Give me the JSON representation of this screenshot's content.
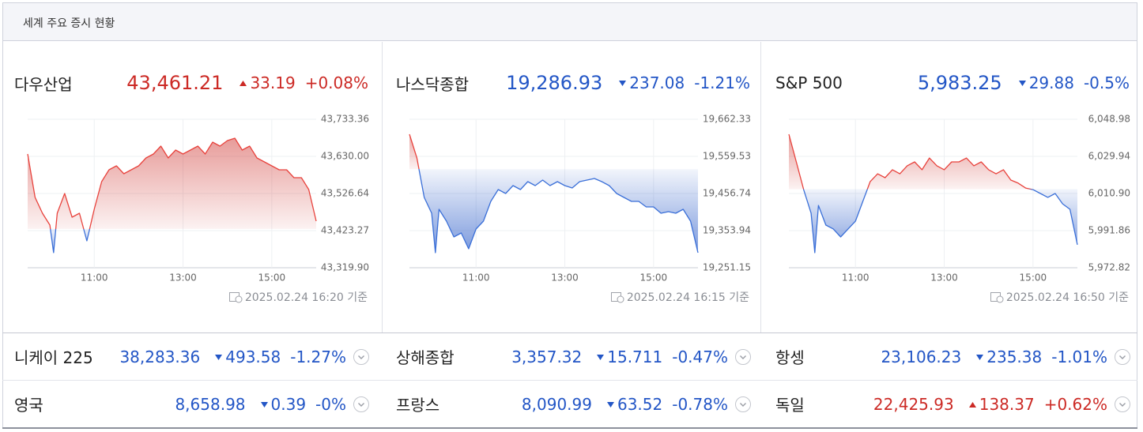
{
  "header": {
    "title": "세계 주요 증시 현황"
  },
  "panels": [
    {
      "name": "다우산업",
      "price": "43,461.21",
      "change": "33.19",
      "percent": "+0.08%",
      "updated": "2025.02.24 16:20 기준",
      "chart": {
        "type": "line",
        "grid": true,
        "x": [
          "09:30",
          "09:40",
          "09:50",
          "10:00",
          "10:05",
          "10:10",
          "10:20",
          "10:30",
          "10:40",
          "10:50",
          "11:00",
          "11:10",
          "11:20",
          "11:30",
          "11:40",
          "11:50",
          "12:00",
          "12:10",
          "12:20",
          "12:30",
          "12:40",
          "12:50",
          "13:00",
          "13:10",
          "13:20",
          "13:30",
          "13:40",
          "13:50",
          "14:00",
          "14:10",
          "14:20",
          "14:30",
          "14:40",
          "14:50",
          "15:00",
          "15:10",
          "15:20",
          "15:30",
          "15:40",
          "15:50",
          "16:00"
        ],
        "values": [
          43636.6,
          43515.7,
          43471.7,
          43438.7,
          43361.8,
          43471.7,
          43526.7,
          43460.7,
          43471.7,
          43394.7,
          43482.7,
          43559.7,
          43592.7,
          43603.7,
          43581.7,
          43592.7,
          43603.7,
          43625.6,
          43636.6,
          43658.6,
          43625.6,
          43647.6,
          43636.6,
          43647.6,
          43658.6,
          43636.6,
          43669.6,
          43658.6,
          43674.0,
          43680.6,
          43647.6,
          43658.6,
          43625.6,
          43614.7,
          43603.7,
          43592.7,
          43592.7,
          43570.7,
          43570.7,
          43537.7,
          43449.7
        ],
        "xlim": [
          "09:30",
          "16:00"
        ],
        "xticks": [
          "11:00",
          "13:00",
          "15:00"
        ],
        "ylim": [
          43319.9,
          43733.36
        ],
        "yticks": [
          {
            "value": 43733.36,
            "label": "43,733.36"
          },
          {
            "value": 43630.0,
            "label": "43,630.00"
          },
          {
            "value": 43526.64,
            "label": "43,526.64"
          },
          {
            "value": 43423.27,
            "label": "43,423.27"
          },
          {
            "value": 43319.9,
            "label": "43,319.90"
          }
        ]
      }
    },
    {
      "name": "나스닥종합",
      "price": "19,286.93",
      "change": "237.08",
      "percent": "-1.21%",
      "updated": "2025.02.24 16:15 기준",
      "chart": {
        "type": "line",
        "grid": true,
        "x": [
          "09:30",
          "09:40",
          "09:50",
          "10:00",
          "10:05",
          "10:10",
          "10:20",
          "10:30",
          "10:40",
          "10:50",
          "11:00",
          "11:10",
          "11:20",
          "11:30",
          "11:40",
          "11:50",
          "12:00",
          "12:10",
          "12:20",
          "12:30",
          "12:40",
          "12:50",
          "13:00",
          "13:10",
          "13:20",
          "13:30",
          "13:40",
          "13:50",
          "14:00",
          "14:10",
          "14:20",
          "14:30",
          "14:40",
          "14:50",
          "15:00",
          "15:10",
          "15:20",
          "15:30",
          "15:40",
          "15:50",
          "16:00"
        ],
        "values": [
          19620.7,
          19555.1,
          19445.8,
          19402.0,
          19292.7,
          19413.0,
          19380.2,
          19336.4,
          19347.4,
          19303.6,
          19358.3,
          19380.2,
          19434.9,
          19467.7,
          19456.7,
          19478.6,
          19467.7,
          19489.5,
          19478.6,
          19493.9,
          19478.6,
          19489.5,
          19478.6,
          19472.0,
          19489.5,
          19493.9,
          19498.3,
          19489.5,
          19478.6,
          19456.7,
          19445.8,
          19434.9,
          19434.9,
          19419.5,
          19419.5,
          19402.0,
          19406.4,
          19402.0,
          19413.0,
          19380.2,
          19292.7
        ],
        "xlim": [
          "09:30",
          "16:00"
        ],
        "xticks": [
          "11:00",
          "13:00",
          "15:00"
        ],
        "ylim": [
          19251.15,
          19662.33
        ],
        "yticks": [
          {
            "value": 19662.33,
            "label": "19,662.33"
          },
          {
            "value": 19559.53,
            "label": "19,559.53"
          },
          {
            "value": 19456.74,
            "label": "19,456.74"
          },
          {
            "value": 19353.94,
            "label": "19,353.94"
          },
          {
            "value": 19251.15,
            "label": "19,251.15"
          }
        ]
      }
    },
    {
      "name": "S&P 500",
      "price": "5,983.25",
      "change": "29.88",
      "percent": "-0.5%",
      "updated": "2025.02.24 16:50 기준",
      "chart": {
        "type": "line",
        "grid": true,
        "x": [
          "09:30",
          "09:40",
          "09:50",
          "10:00",
          "10:05",
          "10:10",
          "10:20",
          "10:30",
          "10:40",
          "10:50",
          "11:00",
          "11:10",
          "11:20",
          "11:30",
          "11:40",
          "11:50",
          "12:00",
          "12:10",
          "12:20",
          "12:30",
          "12:40",
          "12:50",
          "13:00",
          "13:10",
          "13:20",
          "13:30",
          "13:40",
          "13:50",
          "14:00",
          "14:10",
          "14:20",
          "14:30",
          "14:40",
          "14:50",
          "15:00",
          "15:10",
          "15:20",
          "15:30",
          "15:40",
          "15:50",
          "16:00"
        ],
        "values": [
          6041.3,
          6027.1,
          6012.9,
          6000.8,
          5980.5,
          6004.8,
          5994.7,
          5992.7,
          5988.6,
          5992.7,
          5996.7,
          6006.9,
          6017.0,
          6021.0,
          6019.0,
          6023.1,
          6021.0,
          6025.1,
          6027.1,
          6023.1,
          6029.1,
          6025.1,
          6023.1,
          6027.1,
          6027.1,
          6029.1,
          6025.1,
          6027.1,
          6023.1,
          6021.0,
          6023.1,
          6017.8,
          6016.2,
          6013.7,
          6012.9,
          6010.9,
          6008.9,
          6010.9,
          6005.6,
          6002.8,
          5984.6
        ],
        "xlim": [
          "09:30",
          "16:00"
        ],
        "xticks": [
          "11:00",
          "13:00",
          "15:00"
        ],
        "ylim": [
          5972.82,
          6048.98
        ],
        "yticks": [
          {
            "value": 6048.98,
            "label": "6,048.98"
          },
          {
            "value": 6029.94,
            "label": "6,029.94"
          },
          {
            "value": 6010.9,
            "label": "6,010.90"
          },
          {
            "value": 5991.86,
            "label": "5,991.86"
          },
          {
            "value": 5972.82,
            "label": "5,972.82"
          }
        ]
      }
    }
  ],
  "rows": [
    [
      {
        "name": "니케이 225",
        "price": "38,283.36",
        "change": "493.58",
        "percent": "-1.27%"
      },
      {
        "name": "상해종합",
        "price": "3,357.32",
        "change": "15.711",
        "percent": "-0.47%"
      },
      {
        "name": "항셍",
        "price": "23,106.23",
        "change": "235.38",
        "percent": "-1.01%"
      }
    ],
    [
      {
        "name": "영국",
        "price": "8,658.98",
        "change": "0.39",
        "percent": "-0%"
      },
      {
        "name": "프랑스",
        "price": "8,090.99",
        "change": "63.52",
        "percent": "-0.78%"
      },
      {
        "name": "독일",
        "price": "22,425.93",
        "change": "138.37",
        "percent": "+0.62%"
      }
    ]
  ]
}
